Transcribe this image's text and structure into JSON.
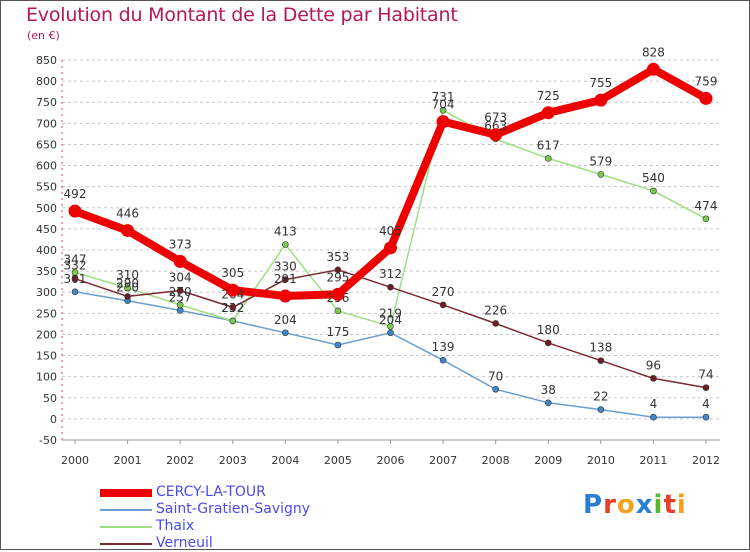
{
  "title": "Evolution du Montant de la Dette par Habitant",
  "unit": "(en €)",
  "logo": {
    "text": "Proxiti",
    "letters": [
      {
        "ch": "P",
        "color": "#2a7fd4"
      },
      {
        "ch": "r",
        "color": "#e6402d"
      },
      {
        "ch": "o",
        "color": "#f2a21c"
      },
      {
        "ch": "x",
        "color": "#2a7fd4"
      },
      {
        "ch": "i",
        "color": "#5cb531"
      },
      {
        "ch": "t",
        "color": "#e6402d"
      },
      {
        "ch": "i",
        "color": "#f2a21c"
      }
    ]
  },
  "chart_data": {
    "type": "line",
    "title": "Evolution du Montant de la Dette par Habitant",
    "ylabel": "(en €)",
    "xlabel": "",
    "ylim": [
      -50,
      850
    ],
    "y_ticks": [
      -50,
      0,
      50,
      100,
      150,
      200,
      250,
      300,
      350,
      400,
      450,
      500,
      550,
      600,
      650,
      700,
      750,
      800,
      850
    ],
    "grid": "horizontal-dashed",
    "legend_position": "bottom-left",
    "x": [
      "2000",
      "2001",
      "2002",
      "2003",
      "2004",
      "2005",
      "2006",
      "2007",
      "2008",
      "2009",
      "2010",
      "2011",
      "2012"
    ],
    "series": [
      {
        "name": "Saint-Gratien-Savigny",
        "color": "#6a9fcf",
        "marker": "#3f87c9",
        "width": 1.5,
        "values": [
          301,
          280,
          257,
          232,
          204,
          175,
          204,
          139,
          70,
          38,
          22,
          4,
          4
        ],
        "labels": [
          "301",
          "280",
          "257",
          "232",
          "204",
          "175",
          "204",
          "139",
          "70",
          "38",
          "22",
          "4",
          "4"
        ]
      },
      {
        "name": "Thaix",
        "color": "#9ede84",
        "marker": "#7cc94f",
        "width": 1.5,
        "values": [
          347,
          310,
          270,
          232,
          413,
          256,
          219,
          731,
          663,
          617,
          579,
          540,
          474
        ],
        "labels": [
          "347",
          "310",
          "270",
          "232",
          "413",
          "256",
          "219",
          "731",
          "663",
          "617",
          "579",
          "540",
          "474"
        ]
      },
      {
        "name": "Verneuil",
        "color": "#7a2a32",
        "marker": "#6b1f26",
        "width": 1.5,
        "values": [
          332,
          290,
          304,
          264,
          330,
          353,
          312,
          270,
          226,
          180,
          138,
          96,
          74
        ],
        "labels": [
          "332",
          "290",
          "304",
          "264",
          "330",
          "353",
          "312",
          "270",
          "226",
          "180",
          "138",
          "96",
          "74"
        ]
      },
      {
        "name": "CERCY-LA-TOUR",
        "color": "#ee0000",
        "marker": "#ee0000",
        "width": 8,
        "values": [
          492,
          446,
          373,
          305,
          291,
          295,
          405,
          704,
          673,
          725,
          755,
          828,
          759
        ],
        "labels": [
          "492",
          "446",
          "373",
          "305",
          "291",
          "295",
          "405",
          "704",
          "673",
          "725",
          "755",
          "828",
          "759"
        ]
      }
    ],
    "legend_order": [
      "CERCY-LA-TOUR",
      "Saint-Gratien-Savigny",
      "Thaix",
      "Verneuil"
    ]
  }
}
